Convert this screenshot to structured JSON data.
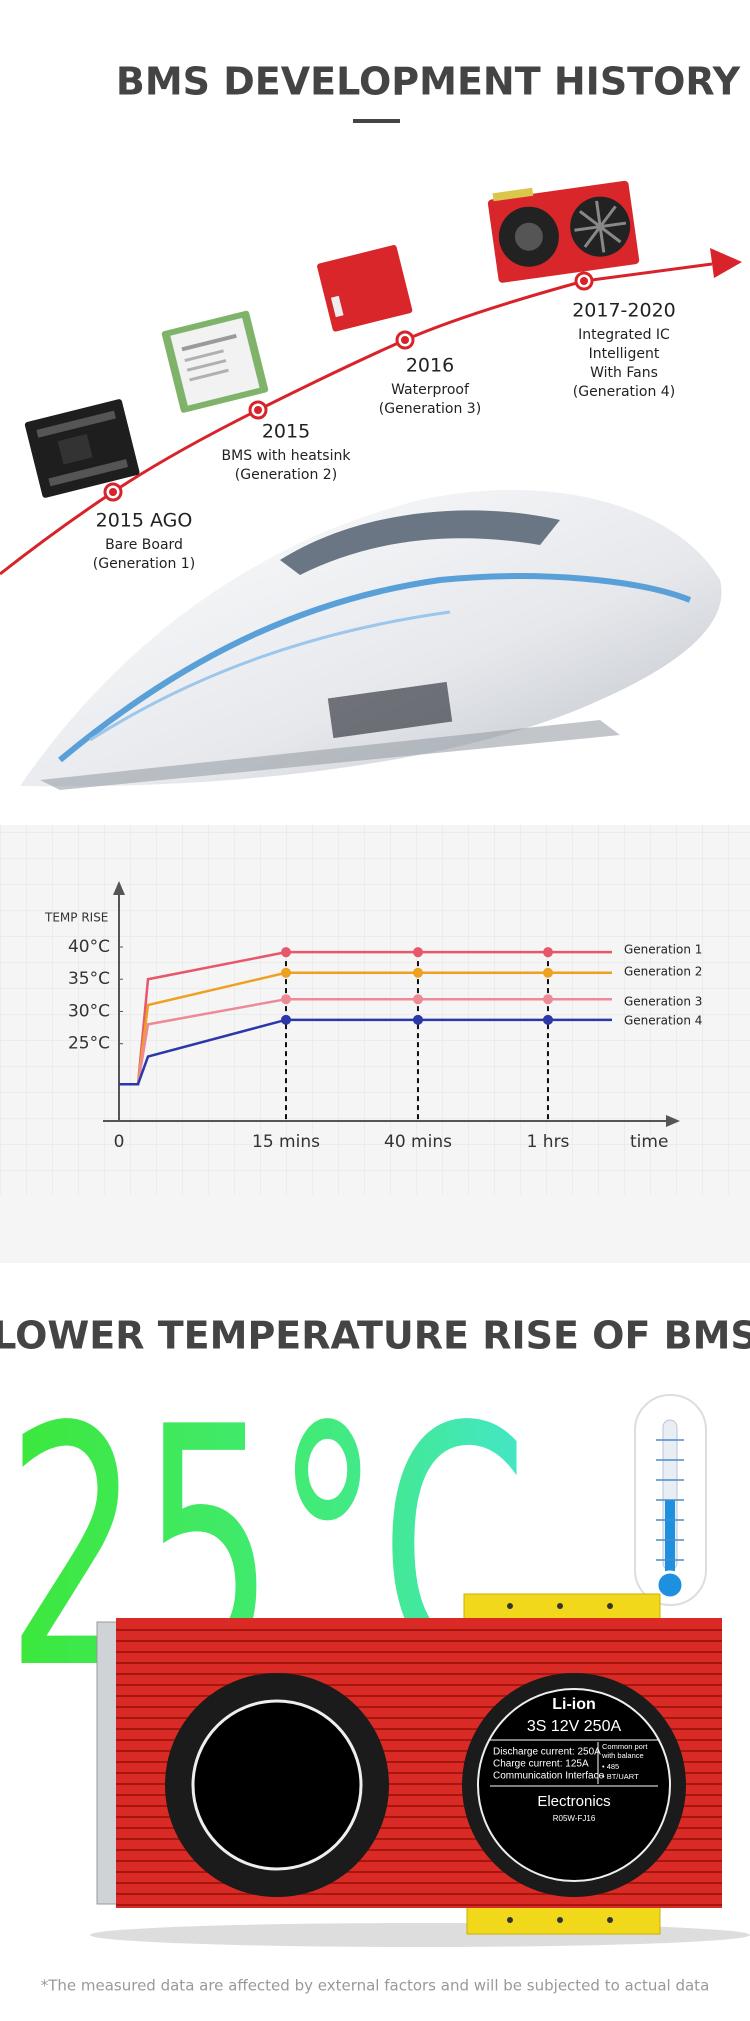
{
  "header": {
    "title": "BMS DEVELOPMENT HISTORY"
  },
  "timeline": [
    {
      "year": "2015 AGO",
      "lines": [
        "Bare Board",
        "(Generation 1)"
      ]
    },
    {
      "year": "2015",
      "lines": [
        "BMS with heatsink",
        "(Generation 2)"
      ]
    },
    {
      "year": "2016",
      "lines": [
        "Waterproof",
        "(Generation 3)"
      ]
    },
    {
      "year": "2017-2020",
      "lines": [
        "Integrated IC",
        "Intelligent",
        "With Fans",
        "(Generation 4)"
      ]
    }
  ],
  "chart_data": {
    "type": "line",
    "y_label": "TEMP RISE",
    "x_label": "time",
    "categories": [
      "0",
      null,
      null,
      "15 mins",
      "40 mins",
      "1 hrs",
      null
    ],
    "series": [
      {
        "name": "Generation 1",
        "color": "#e8566a",
        "values": [
          18.7,
          18.7,
          35,
          39.2,
          39.2,
          39.2,
          39.2
        ]
      },
      {
        "name": "Generation 2",
        "color": "#f0a020",
        "values": [
          18.7,
          18.7,
          31,
          36,
          36,
          36,
          36
        ]
      },
      {
        "name": "Generation 3",
        "color": "#ec8a96",
        "values": [
          18.7,
          18.7,
          28,
          31.9,
          31.9,
          31.9,
          31.9
        ]
      },
      {
        "name": "Generation 4",
        "color": "#2a38a8",
        "values": [
          18.7,
          18.7,
          23,
          28.7,
          28.7,
          28.7,
          28.7
        ]
      }
    ],
    "ylim": [
      13,
      49
    ],
    "yticks": [
      {
        "value": 40,
        "label": "40°C"
      },
      {
        "value": 35,
        "label": "35°C"
      },
      {
        "value": 30,
        "label": "30°C"
      },
      {
        "value": 25,
        "label": "25°C"
      }
    ]
  },
  "section2": {
    "title": "LOWER TEMPERATURE RISE OF BMS",
    "big_text": "25°C",
    "label": {
      "chem": "Li-ion",
      "spec": "3S 12V 250A",
      "left": [
        "Discharge current:  250A",
        "Charge current:  125A",
        "Communication Interface"
      ],
      "right": [
        "Common port",
        "with balance",
        "• 485",
        "• BT/UART"
      ],
      "brand": "Electronics",
      "model": "R05W-FJ16"
    }
  },
  "footnote": "*The measured data are affected by external factors and will be subjected to actual data"
}
